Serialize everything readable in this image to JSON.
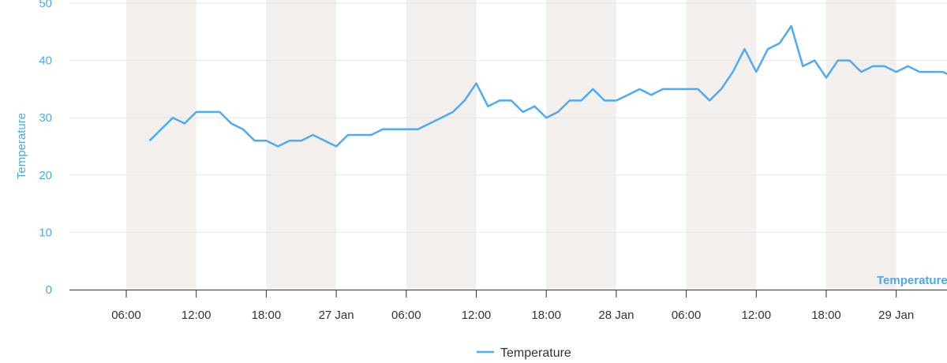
{
  "chart_data": {
    "type": "line",
    "title": "",
    "ylabel": "Temperature",
    "xlabel": "",
    "ylim": [
      0,
      50
    ],
    "yticks": [
      "0",
      "10",
      "20",
      "30",
      "40",
      "50"
    ],
    "xticks": [
      "06:00",
      "12:00",
      "18:00",
      "27 Jan",
      "06:00",
      "12:00",
      "18:00",
      "28 Jan",
      "06:00",
      "12:00",
      "18:00",
      "29 Jan"
    ],
    "xrange": [
      "26 Jan 01:10",
      "29 Jan 04:30"
    ],
    "grid": true,
    "legend_placement": "bottom",
    "plot_bands": [
      [
        "26 Jan 06:00",
        "26 Jan 12:00"
      ],
      [
        "26 Jan 18:00",
        "27 Jan 00:00"
      ],
      [
        "27 Jan 06:00",
        "27 Jan 12:00"
      ],
      [
        "27 Jan 18:00",
        "28 Jan 00:00"
      ],
      [
        "28 Jan 06:00",
        "28 Jan 12:00"
      ],
      [
        "28 Jan 18:00",
        "29 Jan 00:00"
      ]
    ],
    "series": [
      {
        "name": "Temperature",
        "color": "#4dabf5",
        "start": "26 Jan 08:00",
        "interval": "1 hour",
        "values": [
          26,
          28,
          30,
          29,
          31,
          31,
          31,
          29,
          28,
          26,
          26,
          25,
          26,
          26,
          27,
          26,
          25,
          27,
          27,
          27,
          28,
          28,
          28,
          28,
          29,
          30,
          31,
          33,
          36,
          32,
          33,
          33,
          31,
          32,
          30,
          31,
          33,
          33,
          35,
          33,
          33,
          34,
          35,
          34,
          35,
          35,
          35,
          35,
          33,
          35,
          38,
          42,
          38,
          42,
          43,
          46,
          39,
          40,
          37,
          40,
          40,
          38,
          39,
          39,
          38,
          39,
          38,
          38,
          38,
          37
        ]
      }
    ],
    "series_label": "Temperature"
  },
  "colors": {
    "band": "#f2efec",
    "axis_text": "#4aa8f0",
    "grid": "#e6e6e6"
  }
}
